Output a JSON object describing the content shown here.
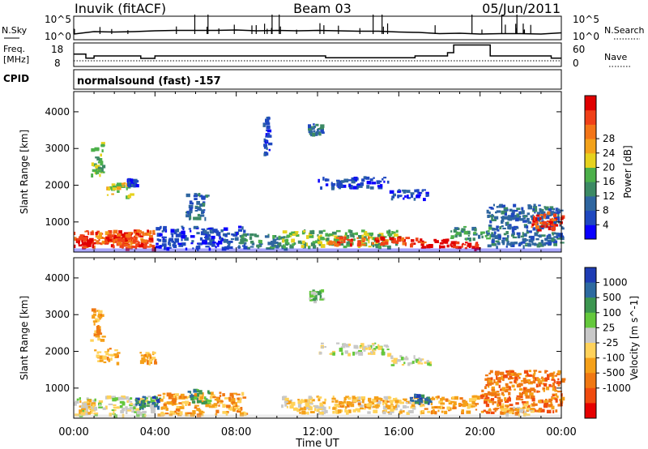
{
  "header": {
    "radar": "Inuvik (fitACF)",
    "beam": "Beam 03",
    "date": "05/Jun/2011",
    "cpid_label": "CPID",
    "cpid_text": "normalsound (fast) -157"
  },
  "chart_data": [
    {
      "type": "line",
      "panel": "noise",
      "ylabel_left": "N.Sky",
      "ylabel_right": "N.Search",
      "ticks_left": [
        "10^5",
        "10^0"
      ],
      "ticks_right": [
        "10^5",
        "10^0"
      ],
      "scale": "log",
      "series": [
        {
          "name": "N.Sky",
          "style": "solid",
          "x": [
            0,
            1,
            2,
            3,
            4,
            5,
            6,
            7,
            8,
            9,
            10,
            11,
            12,
            13,
            14,
            15,
            16,
            17,
            18,
            19,
            20,
            21,
            22,
            23,
            24
          ],
          "values": [
            1.0,
            1.6,
            1.5,
            1.6,
            1.8,
            1.9,
            1.9,
            1.9,
            2.0,
            1.8,
            1.9,
            1.8,
            1.9,
            1.8,
            1.7,
            1.7,
            1.5,
            1.4,
            1.1,
            1.2,
            1.0,
            1.1,
            1.1,
            1.0,
            1.3
          ]
        }
      ]
    },
    {
      "type": "line",
      "panel": "frequency",
      "ylabel_left_line1": "Freq.",
      "ylabel_left_line2": "[MHz]",
      "ylabel_right": "Nave",
      "ticks_left": [
        "18",
        "8"
      ],
      "ticks_right": [
        "60",
        "0"
      ],
      "series": [
        {
          "name": "Freq.",
          "style": "solid",
          "x": [
            0,
            0.6,
            0.6,
            1.0,
            1.0,
            3.3,
            3.3,
            4.0,
            4.0,
            12.4,
            12.4,
            16.8,
            16.8,
            18.4,
            18.4,
            18.7,
            18.7,
            20.5,
            20.5,
            23.5,
            23.5,
            24
          ],
          "values": [
            13.3,
            13.3,
            11.3,
            11.3,
            12.4,
            12.4,
            11.2,
            11.2,
            12.4,
            12.4,
            11.5,
            11.5,
            12.4,
            12.4,
            14.0,
            14.0,
            17.8,
            17.8,
            12.4,
            12.4,
            11.3,
            11.3
          ]
        },
        {
          "name": "Nave",
          "style": "dotted",
          "x": [
            0,
            24
          ],
          "values": [
            12,
            12
          ]
        }
      ]
    },
    {
      "type": "heatmap",
      "panel": "power",
      "ylabel": "Slant Range [km]",
      "yticks": [
        "1000",
        "2000",
        "3000",
        "4000"
      ],
      "ylim": [
        180,
        4550
      ],
      "xlim": [
        0,
        24
      ],
      "colorbar_label": "Power [dB]",
      "colorbar_ticks": [
        "4",
        "8",
        "12",
        "16",
        "20",
        "24",
        "28"
      ],
      "colorbar_colors": [
        "#0a00ff",
        "#1f48c0",
        "#2f66a0",
        "#3c8a64",
        "#4cb04a",
        "#e6d21e",
        "#f3a21b",
        "#f37518",
        "#f04018",
        "#e00000"
      ],
      "regions": [
        {
          "t0": 0.0,
          "t1": 3.9,
          "r0": 300,
          "r1": 800,
          "level": 8
        },
        {
          "t0": 0.1,
          "t1": 0.8,
          "r0": 380,
          "r1": 620,
          "level": 9
        },
        {
          "t0": 1.0,
          "t1": 3.7,
          "r0": 450,
          "r1": 750,
          "level": 7
        },
        {
          "t0": 1.4,
          "t1": 2.6,
          "r0": 500,
          "r1": 680,
          "level": 8
        },
        {
          "t0": 1.6,
          "t1": 2.8,
          "r0": 1700,
          "r1": 2100,
          "level": 5
        },
        {
          "t0": 2.6,
          "t1": 3.0,
          "r0": 2000,
          "r1": 2200,
          "level": 1
        },
        {
          "t0": 0.8,
          "t1": 1.4,
          "r0": 2300,
          "r1": 3200,
          "level": 4
        },
        {
          "t0": 4.0,
          "t1": 8.4,
          "r0": 300,
          "r1": 900,
          "level": 1
        },
        {
          "t0": 5.5,
          "t1": 6.5,
          "r0": 1100,
          "r1": 1800,
          "level": 2
        },
        {
          "t0": 8.0,
          "t1": 10.5,
          "r0": 300,
          "r1": 700,
          "level": 3
        },
        {
          "t0": 10.2,
          "t1": 16.0,
          "r0": 350,
          "r1": 800,
          "level": 4
        },
        {
          "t0": 12.5,
          "t1": 17.2,
          "r0": 400,
          "r1": 620,
          "level": 8
        },
        {
          "t0": 17.0,
          "t1": 19.8,
          "r0": 300,
          "r1": 560,
          "level": 9
        },
        {
          "t0": 18.5,
          "t1": 20.5,
          "r0": 560,
          "r1": 900,
          "level": 3
        },
        {
          "t0": 20.3,
          "t1": 24.0,
          "r0": 350,
          "r1": 1500,
          "level": 2
        },
        {
          "t0": 22.5,
          "t1": 24.0,
          "r0": 800,
          "r1": 1300,
          "level": 8
        },
        {
          "t0": 12.0,
          "t1": 15.5,
          "r0": 1950,
          "r1": 2250,
          "level": 1
        },
        {
          "t0": 15.5,
          "t1": 17.5,
          "r0": 1650,
          "r1": 1900,
          "level": 1
        },
        {
          "t0": 11.5,
          "t1": 12.2,
          "r0": 3400,
          "r1": 3700,
          "level": 2
        },
        {
          "t0": 9.3,
          "t1": 9.6,
          "r0": 2800,
          "r1": 3900,
          "level": 1
        }
      ]
    },
    {
      "type": "heatmap",
      "panel": "velocity",
      "ylabel": "Slant Range [km]",
      "yticks": [
        "1000",
        "2000",
        "3000",
        "4000"
      ],
      "ylim": [
        180,
        4550
      ],
      "xlim": [
        0,
        24
      ],
      "xticks": [
        "00:00",
        "04:00",
        "08:00",
        "12:00",
        "16:00",
        "20:00",
        "00:00"
      ],
      "xlabel": "Time UT",
      "colorbar_label": "Velocity [m s^-1]",
      "colorbar_ticks": [
        "1000",
        "500",
        "100",
        "25",
        "-25",
        "-100",
        "-500",
        "-1000"
      ],
      "colorbar_colors": [
        "#1e3cb4",
        "#2d6aa0",
        "#3c9650",
        "#64c83c",
        "#c8c8c8",
        "#ffd25a",
        "#f5a019",
        "#f07812",
        "#f04b0f",
        "#e60000"
      ],
      "regions": [
        {
          "t0": 0.0,
          "t1": 3.9,
          "r0": 280,
          "r1": 800,
          "level": 4
        },
        {
          "t0": 0.2,
          "t1": 1.0,
          "r0": 300,
          "r1": 700,
          "level": 5
        },
        {
          "t0": 1.0,
          "t1": 2.2,
          "r0": 1700,
          "r1": 2100,
          "level": 6
        },
        {
          "t0": 3.2,
          "t1": 4.0,
          "r0": 1700,
          "r1": 2000,
          "level": 6
        },
        {
          "t0": 3.0,
          "t1": 4.2,
          "r0": 450,
          "r1": 800,
          "level": 1
        },
        {
          "t0": 4.0,
          "t1": 8.4,
          "r0": 300,
          "r1": 900,
          "level": 6
        },
        {
          "t0": 5.6,
          "t1": 6.6,
          "r0": 600,
          "r1": 1000,
          "level": 2
        },
        {
          "t0": 10.2,
          "t1": 16.8,
          "r0": 350,
          "r1": 800,
          "level": 5
        },
        {
          "t0": 13.0,
          "t1": 16.0,
          "r0": 500,
          "r1": 700,
          "level": 6
        },
        {
          "t0": 16.8,
          "t1": 19.8,
          "r0": 350,
          "r1": 820,
          "level": 6
        },
        {
          "t0": 16.5,
          "t1": 17.5,
          "r0": 600,
          "r1": 850,
          "level": 1
        },
        {
          "t0": 20.0,
          "t1": 24.0,
          "r0": 350,
          "r1": 1500,
          "level": 7
        },
        {
          "t0": 21.0,
          "t1": 22.5,
          "r0": 300,
          "r1": 600,
          "level": 5
        },
        {
          "t0": 12.0,
          "t1": 15.5,
          "r0": 1950,
          "r1": 2250,
          "level": 4
        },
        {
          "t0": 15.5,
          "t1": 17.5,
          "r0": 1650,
          "r1": 1900,
          "level": 4
        },
        {
          "t0": 0.8,
          "t1": 1.4,
          "r0": 2300,
          "r1": 3200,
          "level": 6
        },
        {
          "t0": 11.5,
          "t1": 12.2,
          "r0": 3400,
          "r1": 3700,
          "level": 3
        }
      ]
    }
  ]
}
